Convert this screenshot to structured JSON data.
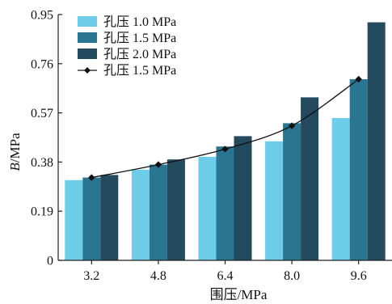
{
  "chart_data": {
    "type": "bar",
    "categories": [
      "3.2",
      "4.8",
      "6.4",
      "8.0",
      "9.6"
    ],
    "series": [
      {
        "name": "孔压 1.0 MPa",
        "type": "bar",
        "color": "#6dcde8",
        "values": [
          0.31,
          0.35,
          0.4,
          0.46,
          0.55
        ]
      },
      {
        "name": "孔压 1.5 MPa",
        "type": "bar",
        "color": "#2a7591",
        "values": [
          0.32,
          0.37,
          0.44,
          0.53,
          0.7
        ]
      },
      {
        "name": "孔压 2.0 MPa",
        "type": "bar",
        "color": "#234a5e",
        "values": [
          0.33,
          0.39,
          0.48,
          0.63,
          0.92
        ]
      },
      {
        "name": "孔压 1.5 MPa",
        "type": "line",
        "color": "#111111",
        "marker": "diamond",
        "values": [
          0.32,
          0.37,
          0.43,
          0.52,
          0.7
        ]
      }
    ],
    "title": "",
    "xlabel": "围压/MPa",
    "ylabel_italic": "B",
    "ylabel_rest": "/MPa",
    "ylim": [
      0,
      0.95
    ],
    "yticks": [
      "0",
      "0.19",
      "0.38",
      "0.57",
      "0.76",
      "0.95"
    ],
    "grid": false,
    "legend_position": "top-left"
  }
}
